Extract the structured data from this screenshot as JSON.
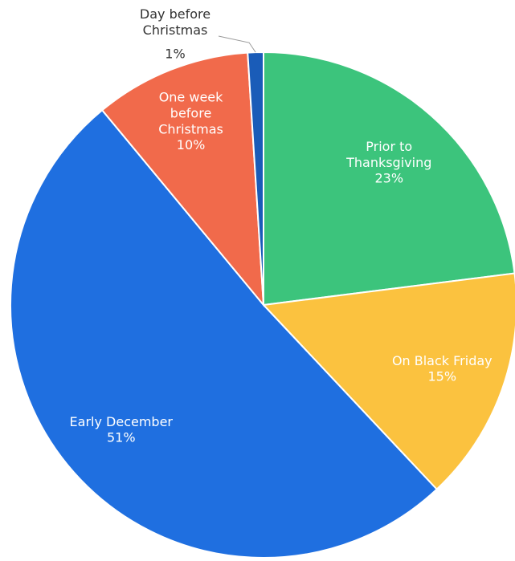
{
  "chart_data": {
    "type": "pie",
    "categories": [
      "Prior to Thanksgiving",
      "On Black Friday",
      "Early December",
      "One week before Christmas",
      "Day before Christmas"
    ],
    "values": [
      23,
      15,
      51,
      10,
      1
    ],
    "value_labels": [
      "23%",
      "15%",
      "51%",
      "10%",
      "1%"
    ],
    "colors": [
      "#3cc47c",
      "#fbc23f",
      "#1f6fe0",
      "#f16a4b",
      "#1a5cb8"
    ]
  }
}
